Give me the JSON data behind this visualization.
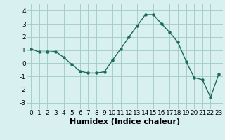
{
  "x": [
    0,
    1,
    2,
    3,
    4,
    5,
    6,
    7,
    8,
    9,
    10,
    11,
    12,
    13,
    14,
    15,
    16,
    17,
    18,
    19,
    20,
    21,
    22,
    23
  ],
  "y": [
    1.1,
    0.85,
    0.85,
    0.9,
    0.45,
    -0.1,
    -0.6,
    -0.75,
    -0.75,
    -0.65,
    0.25,
    1.1,
    2.0,
    2.85,
    3.7,
    3.7,
    3.0,
    2.35,
    1.6,
    0.15,
    -1.1,
    -1.25,
    -2.6,
    -0.85
  ],
  "xlabel": "Humidex (Indice chaleur)",
  "ylim": [
    -3.5,
    4.5
  ],
  "xlim": [
    -0.5,
    23.5
  ],
  "yticks": [
    -3,
    -2,
    -1,
    0,
    1,
    2,
    3,
    4
  ],
  "xticks": [
    0,
    1,
    2,
    3,
    4,
    5,
    6,
    7,
    8,
    9,
    10,
    11,
    12,
    13,
    14,
    15,
    16,
    17,
    18,
    19,
    20,
    21,
    22,
    23
  ],
  "line_color": "#1a6b5a",
  "marker_color": "#1a6b5a",
  "bg_color": "#d8f0f0",
  "grid_color": "#a0c8c8",
  "xlabel_fontsize": 8,
  "tick_fontsize": 6.5
}
